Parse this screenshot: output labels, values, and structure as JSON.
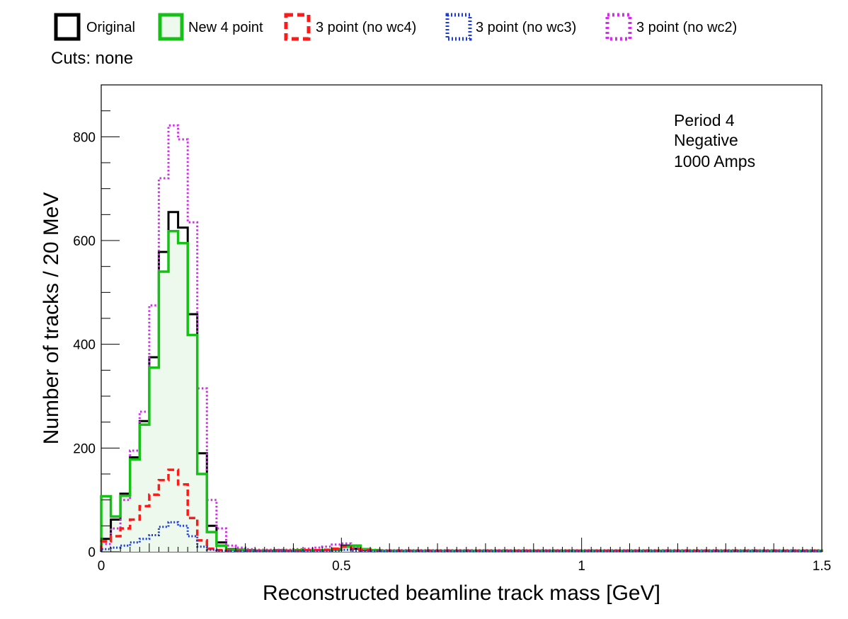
{
  "legend": {
    "cuts_text": "Cuts: none"
  },
  "chart_data": {
    "type": "histogram-step",
    "title": "",
    "xlabel": "Reconstructed beamline track mass [GeV]",
    "ylabel": "Number of tracks / 20 MeV",
    "xlim": [
      0,
      1.5
    ],
    "ylim": [
      0,
      900
    ],
    "bin_width": 0.02,
    "x_ticks": [
      0,
      0.5,
      1,
      1.5
    ],
    "x_tick_labels": [
      "0",
      "0.5",
      "1",
      "1.5"
    ],
    "y_ticks": [
      0,
      200,
      400,
      600,
      800
    ],
    "y_tick_labels": [
      "0",
      "200",
      "400",
      "600",
      "800"
    ],
    "grid": false,
    "legend_position": "top, above plot",
    "annotation": [
      "Period 4",
      "Negative",
      "1000 Amps"
    ],
    "series": [
      {
        "name": "Original",
        "color": "#000000",
        "line_style": "solid",
        "fill": false,
        "values": [
          25,
          62,
          112,
          182,
          252,
          375,
          578,
          655,
          625,
          458,
          190,
          50,
          18,
          5,
          4,
          3,
          2,
          2,
          3,
          2,
          3,
          3,
          3,
          3,
          5,
          12,
          6,
          3,
          3,
          2,
          2,
          2,
          2,
          2,
          2,
          2,
          2,
          2,
          2,
          2,
          2,
          2,
          2,
          2,
          2,
          2,
          2,
          2,
          2,
          2,
          2,
          2,
          2,
          2,
          2,
          2,
          2,
          2,
          2,
          2,
          2,
          2,
          2,
          2,
          2,
          2,
          2,
          2,
          2,
          2,
          2,
          2,
          2,
          2,
          2
        ]
      },
      {
        "name": "New 4 point",
        "color": "#16c016",
        "line_style": "solid",
        "fill": true,
        "fill_color": "#eef9ee",
        "values": [
          107,
          68,
          108,
          178,
          245,
          355,
          540,
          618,
          595,
          418,
          150,
          38,
          12,
          4,
          3,
          2,
          2,
          2,
          2,
          2,
          3,
          3,
          3,
          3,
          4,
          10,
          12,
          5,
          3,
          2,
          2,
          2,
          2,
          2,
          2,
          2,
          2,
          2,
          2,
          2,
          2,
          2,
          2,
          2,
          2,
          2,
          2,
          2,
          2,
          2,
          2,
          2,
          2,
          2,
          2,
          2,
          2,
          2,
          2,
          2,
          2,
          2,
          2,
          2,
          2,
          2,
          2,
          2,
          2,
          2,
          2,
          2,
          2,
          2,
          2
        ]
      },
      {
        "name": "3 point (no wc4)",
        "color": "#ff1a1a",
        "line_style": "dashed",
        "fill": false,
        "values": [
          20,
          30,
          45,
          62,
          88,
          110,
          138,
          158,
          130,
          65,
          22,
          6,
          3,
          2,
          2,
          2,
          2,
          2,
          2,
          2,
          2,
          3,
          3,
          4,
          6,
          10,
          5,
          3,
          2,
          2,
          2,
          2,
          2,
          2,
          2,
          2,
          2,
          2,
          2,
          2,
          2,
          2,
          2,
          2,
          2,
          2,
          2,
          2,
          2,
          2,
          2,
          2,
          2,
          2,
          2,
          2,
          2,
          2,
          2,
          2,
          2,
          2,
          2,
          2,
          2,
          2,
          2,
          2,
          2,
          2,
          2,
          2,
          2,
          2,
          2
        ]
      },
      {
        "name": "3 point (no wc3)",
        "color": "#1a3bdb",
        "line_style": "dotted",
        "fill": false,
        "values": [
          5,
          8,
          12,
          18,
          25,
          32,
          48,
          57,
          50,
          30,
          10,
          4,
          2,
          1,
          1,
          1,
          1,
          1,
          1,
          1,
          1,
          1,
          1,
          1,
          2,
          4,
          2,
          1,
          1,
          1,
          1,
          1,
          1,
          1,
          1,
          1,
          1,
          1,
          1,
          1,
          1,
          1,
          1,
          1,
          1,
          1,
          1,
          1,
          1,
          1,
          1,
          1,
          1,
          1,
          1,
          1,
          1,
          1,
          1,
          1,
          1,
          1,
          1,
          1,
          1,
          1,
          1,
          1,
          1,
          1,
          1,
          1,
          1,
          1,
          1
        ]
      },
      {
        "name": "3 point (no wc2)",
        "color": "#d02ee8",
        "line_style": "dotted",
        "fill": false,
        "values": [
          15,
          45,
          100,
          195,
          270,
          475,
          720,
          822,
          795,
          635,
          315,
          100,
          45,
          12,
          8,
          5,
          4,
          4,
          4,
          4,
          5,
          6,
          8,
          10,
          14,
          16,
          8,
          5,
          4,
          3,
          3,
          3,
          3,
          3,
          3,
          3,
          3,
          3,
          3,
          3,
          3,
          3,
          3,
          3,
          3,
          3,
          3,
          3,
          3,
          3,
          3,
          3,
          3,
          3,
          3,
          3,
          3,
          3,
          3,
          3,
          3,
          3,
          3,
          3,
          3,
          3,
          3,
          3,
          3,
          3,
          3,
          3,
          3,
          3,
          3
        ]
      }
    ]
  }
}
